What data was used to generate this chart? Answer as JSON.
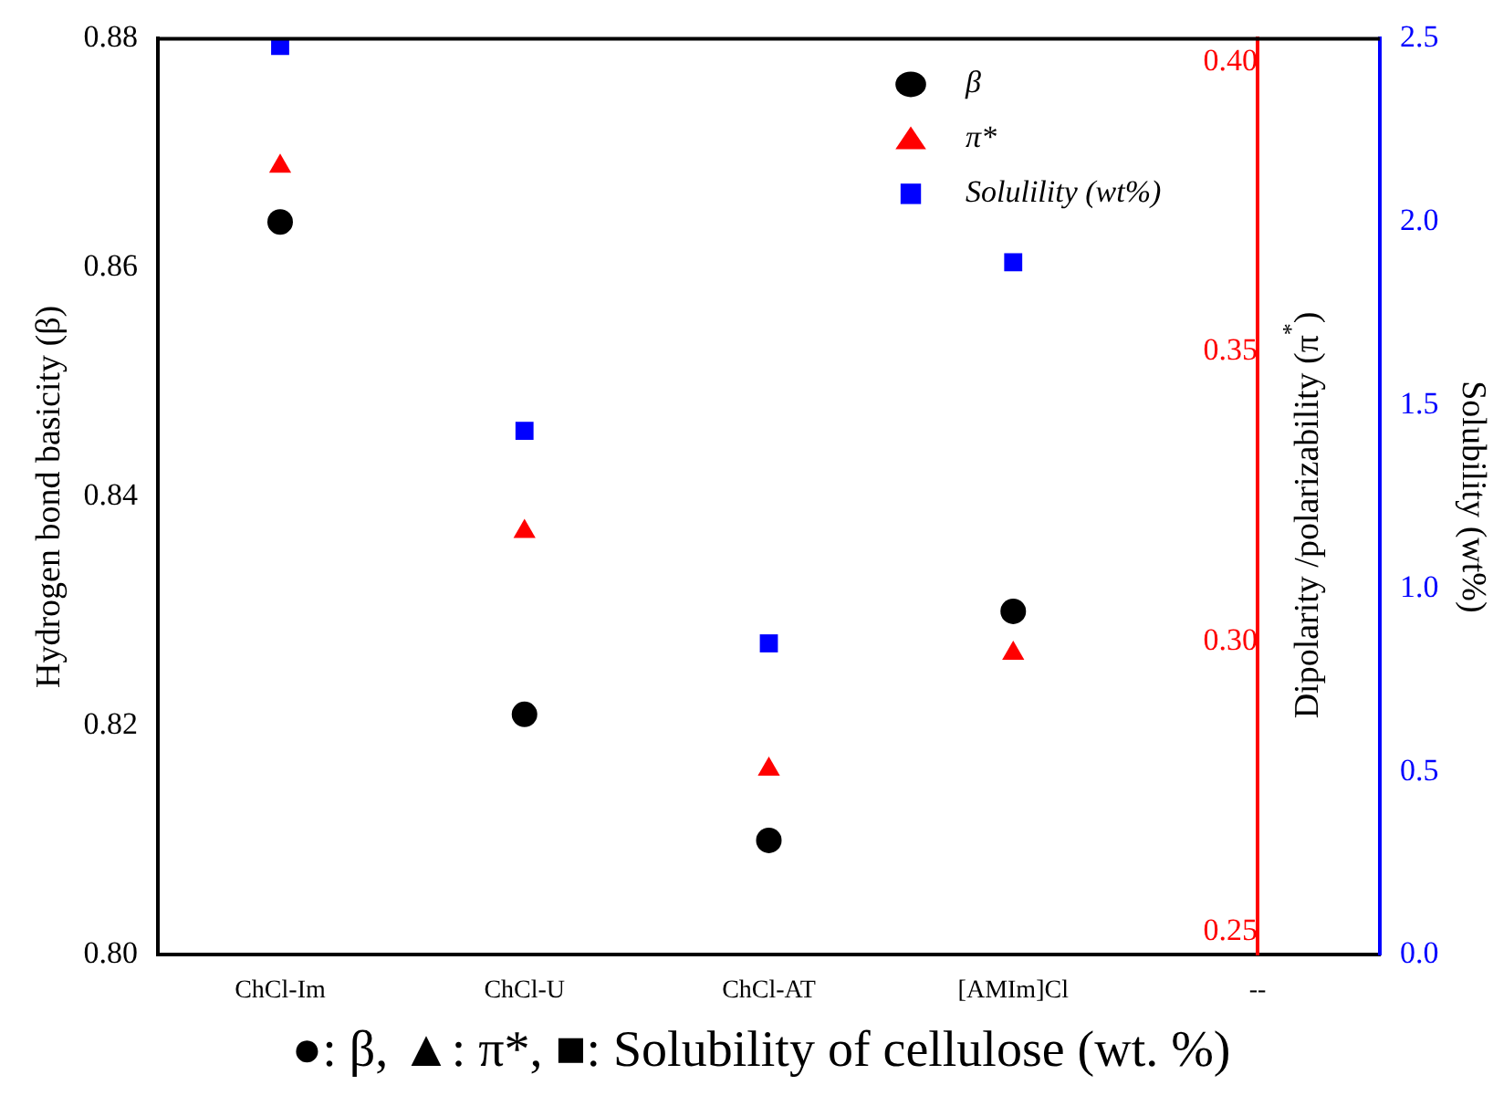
{
  "chart_data": {
    "type": "scatter",
    "categories": [
      "ChCl-Im",
      "ChCl-U",
      "ChCl-AT",
      "[AMIm]Cl",
      "--"
    ],
    "ylabel": "Hydrogen bond basicity (β)",
    "y2label": "Dipolarity /polarizability (π$^{*}$)",
    "y3label": "Solubility (wt%)",
    "ylim": [
      0.8,
      0.88
    ],
    "yticks": [
      {
        "value": 0.8,
        "label": "0.80"
      },
      0.82,
      0.84,
      0.86,
      0.88
    ],
    "y2lim": [
      0.246,
      0.404
    ],
    "y2ticks": [
      0.25,
      {
        "value": 0.3,
        "label": "0.30"
      },
      0.35,
      {
        "value": 0.4,
        "label": "0.40"
      }
    ],
    "y3lim": [
      0,
      2.5
    ],
    "y3ticks": [
      {
        "value": 0,
        "label": "0.0"
      },
      0.5,
      {
        "value": 1,
        "label": "1.0"
      },
      1.5,
      {
        "value": 2,
        "label": "2.0"
      },
      2.5
    ],
    "series": [
      {
        "name": "β",
        "color": "#000000",
        "marker": "circle",
        "values": [
          0.864,
          0.821,
          0.81,
          0.83,
          null
        ]
      },
      {
        "name": "π*",
        "color": "#ff0000",
        "marker": "triangle",
        "axis": "y2",
        "values": [
          0.382,
          0.319,
          0.278,
          0.298,
          null
        ]
      },
      {
        "name": "Solulility (wt%)",
        "color": "#0000ff",
        "marker": "square",
        "axis": "y3",
        "values": [
          2.48,
          1.43,
          0.85,
          1.89,
          null
        ]
      }
    ],
    "legend": "top right",
    "grid": false,
    "annotations": [
      "●: β, ▲: π*, ■: Solubility of cellulose (wt. %)"
    ]
  }
}
